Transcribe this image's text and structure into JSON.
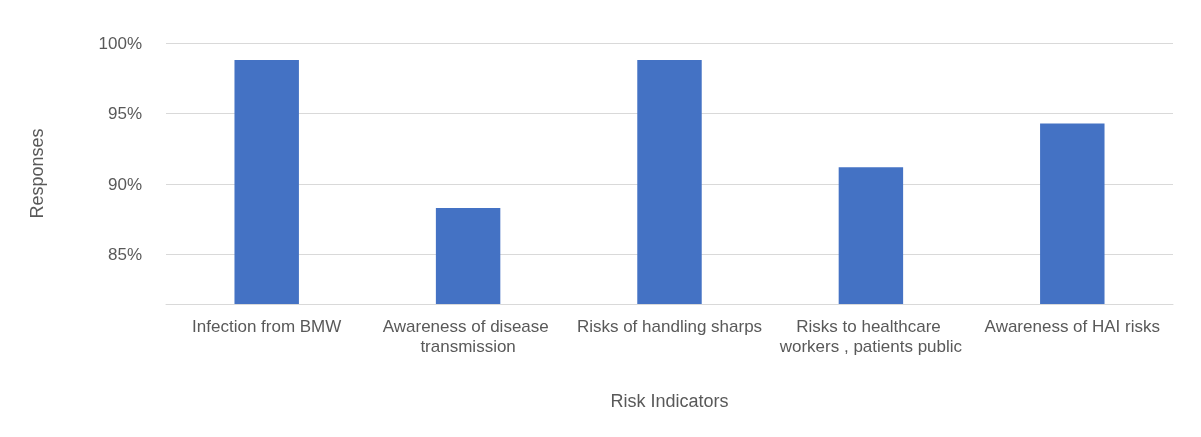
{
  "chart_data": {
    "type": "bar",
    "xlabel": "Risk Indicators",
    "ylabel": "Responses",
    "categories": [
      "Infection from BMW",
      "Awareness of disease transmission",
      "Risks of handling sharps",
      "Risks to healthcare workers , patients public",
      "Awareness of HAI risks"
    ],
    "values": [
      98.8,
      88.3,
      98.8,
      91.2,
      94.3
    ],
    "color": "#4472c4",
    "ylim": [
      81.5,
      100
    ],
    "yticks": [
      {
        "value": 85,
        "label": "85%"
      },
      {
        "value": 90,
        "label": "90%"
      },
      {
        "value": 95,
        "label": "95%"
      },
      {
        "value": 100,
        "label": "100%"
      }
    ],
    "grid": "y"
  }
}
